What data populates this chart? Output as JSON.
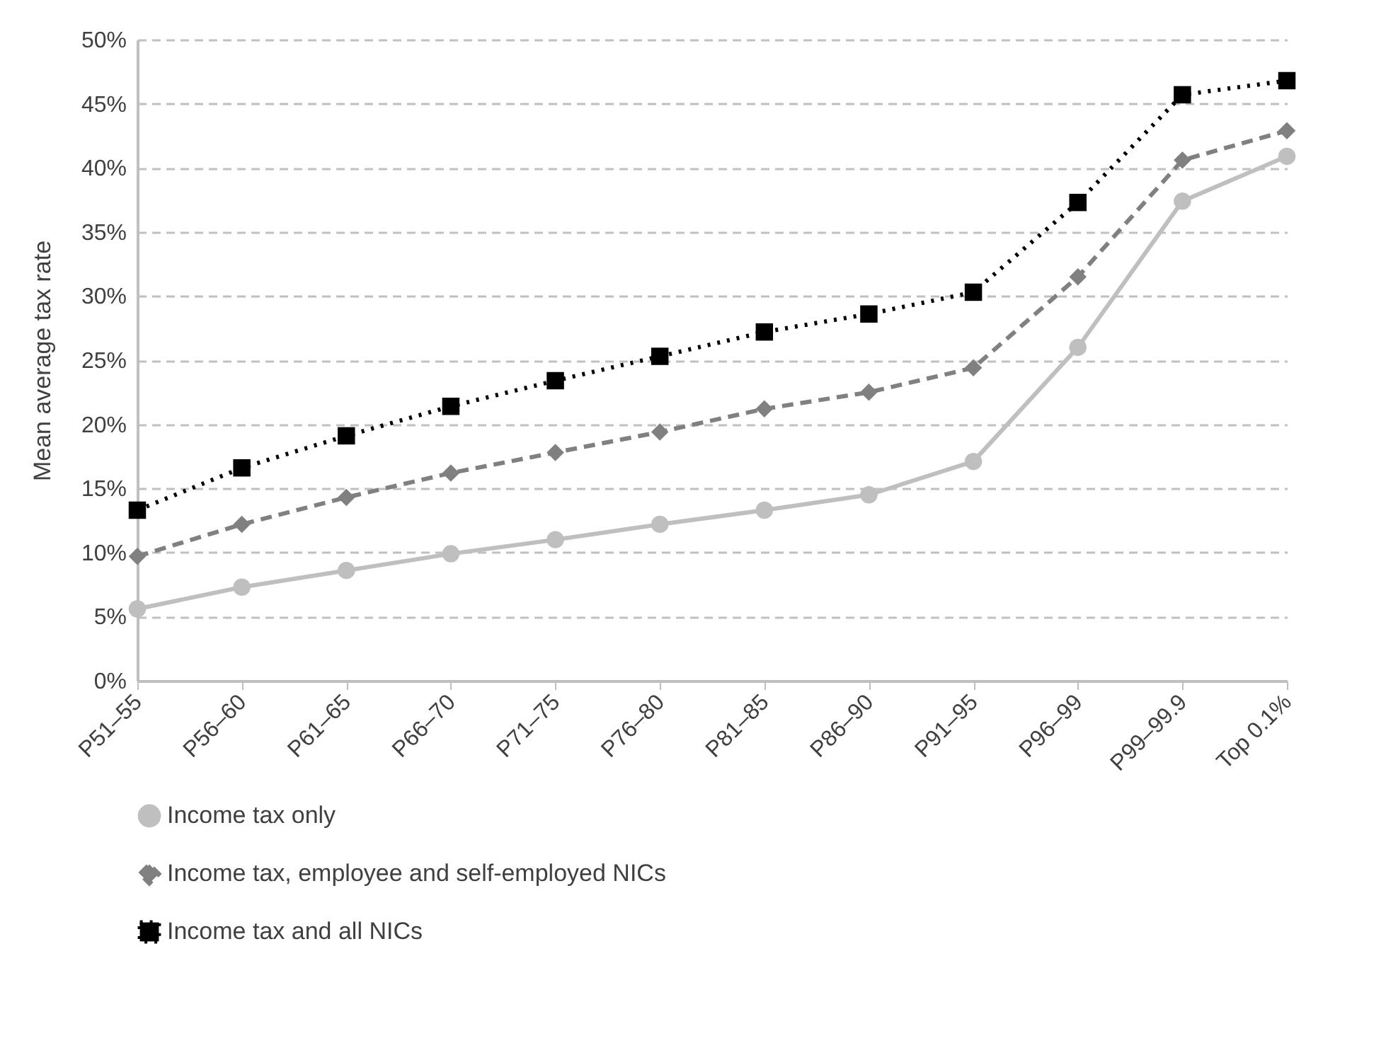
{
  "chart_data": {
    "type": "line",
    "ylabel": "Mean average tax rate",
    "categories": [
      "P51–55",
      "P56–60",
      "P61–65",
      "P66–70",
      "P71–75",
      "P76–80",
      "P81–85",
      "P86–90",
      "P91–95",
      "P96–99",
      "P99–99.9",
      "Top 0.1%"
    ],
    "series": [
      {
        "name": "Income tax only",
        "color": "#bfbfbf",
        "marker": "circle",
        "line_style": "solid",
        "values": [
          5.6,
          7.3,
          8.6,
          9.9,
          11.0,
          12.2,
          13.3,
          14.5,
          17.1,
          26.0,
          37.4,
          40.9
        ]
      },
      {
        "name": "Income tax, employee and self-employed NICs",
        "color": "#808080",
        "marker": "diamond",
        "line_style": "dashed",
        "values": [
          9.7,
          12.2,
          14.3,
          16.2,
          17.8,
          19.4,
          21.2,
          22.5,
          24.4,
          31.5,
          40.6,
          42.9
        ]
      },
      {
        "name": "Income tax and all NICs",
        "color": "#000000",
        "marker": "square",
        "line_style": "dotted",
        "values": [
          13.3,
          16.6,
          19.1,
          21.4,
          23.4,
          25.3,
          27.2,
          28.6,
          30.3,
          37.3,
          45.7,
          46.8
        ]
      }
    ],
    "ylim": [
      0,
      50
    ],
    "yticks": [
      {
        "value": 0,
        "label": "0%"
      },
      {
        "value": 5,
        "label": "5%"
      },
      {
        "value": 10,
        "label": "10%"
      },
      {
        "value": 15,
        "label": "15%"
      },
      {
        "value": 20,
        "label": "20%"
      },
      {
        "value": 25,
        "label": "25%"
      },
      {
        "value": 30,
        "label": "30%"
      },
      {
        "value": 35,
        "label": "35%"
      },
      {
        "value": 40,
        "label": "40%"
      },
      {
        "value": 45,
        "label": "45%"
      },
      {
        "value": 50,
        "label": "50%"
      }
    ],
    "grid": "y",
    "legend": "bottom"
  }
}
